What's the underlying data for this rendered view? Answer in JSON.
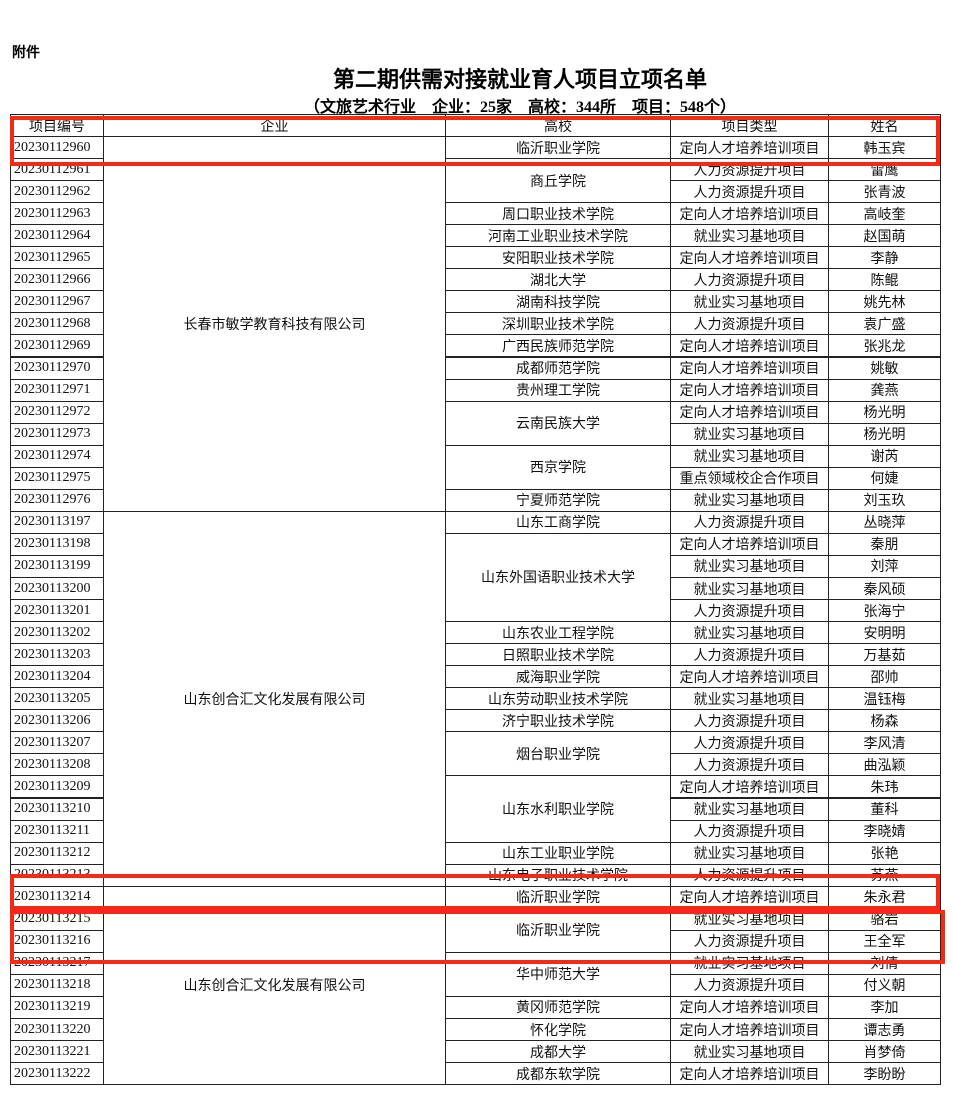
{
  "header": {
    "label": "附件",
    "title": "第二期供需对接就业育人项目立项名单",
    "subtitle": "（文旅艺术行业　企业：25家　高校：344所　项目：548个）"
  },
  "table": {
    "columns": [
      "项目编号",
      "企业",
      "高校",
      "项目类型",
      "姓名"
    ],
    "companies": [
      {
        "name": "长春市敏学教育科技有限公司",
        "schools": [
          {
            "name": "临沂职业学院",
            "projects": [
              {
                "id": "20230112960",
                "type": "定向人才培养培训项目",
                "person": "韩玉宾"
              }
            ]
          },
          {
            "name": "商丘学院",
            "projects": [
              {
                "id": "20230112961",
                "type": "人力资源提升项目",
                "person": "雷鹰"
              },
              {
                "id": "20230112962",
                "type": "人力资源提升项目",
                "person": "张青波"
              }
            ]
          },
          {
            "name": "周口职业技术学院",
            "projects": [
              {
                "id": "20230112963",
                "type": "定向人才培养培训项目",
                "person": "高岐奎"
              }
            ]
          },
          {
            "name": "河南工业职业技术学院",
            "projects": [
              {
                "id": "20230112964",
                "type": "就业实习基地项目",
                "person": "赵国萌"
              }
            ]
          },
          {
            "name": "安阳职业技术学院",
            "projects": [
              {
                "id": "20230112965",
                "type": "定向人才培养培训项目",
                "person": "李静"
              }
            ]
          },
          {
            "name": "湖北大学",
            "projects": [
              {
                "id": "20230112966",
                "type": "人力资源提升项目",
                "person": "陈鲲"
              }
            ]
          },
          {
            "name": "湖南科技学院",
            "projects": [
              {
                "id": "20230112967",
                "type": "就业实习基地项目",
                "person": "姚先林"
              }
            ]
          },
          {
            "name": "深圳职业技术学院",
            "projects": [
              {
                "id": "20230112968",
                "type": "人力资源提升项目",
                "person": "袁广盛"
              }
            ]
          },
          {
            "name": "广西民族师范学院",
            "projects": [
              {
                "id": "20230112969",
                "type": "定向人才培养培训项目",
                "person": "张兆龙"
              }
            ]
          },
          {
            "name": "成都师范学院",
            "projects": [
              {
                "id": "20230112970",
                "type": "定向人才培养培训项目",
                "person": "姚敏"
              }
            ]
          },
          {
            "name": "贵州理工学院",
            "projects": [
              {
                "id": "20230112971",
                "type": "定向人才培养培训项目",
                "person": "龚燕"
              }
            ]
          },
          {
            "name": "云南民族大学",
            "projects": [
              {
                "id": "20230112972",
                "type": "定向人才培养培训项目",
                "person": "杨光明"
              },
              {
                "id": "20230112973",
                "type": "就业实习基地项目",
                "person": "杨光明"
              }
            ]
          },
          {
            "name": "西京学院",
            "projects": [
              {
                "id": "20230112974",
                "type": "就业实习基地项目",
                "person": "谢芮"
              },
              {
                "id": "20230112975",
                "type": "重点领域校企合作项目",
                "person": "何婕"
              }
            ]
          },
          {
            "name": "宁夏师范学院",
            "projects": [
              {
                "id": "20230112976",
                "type": "就业实习基地项目",
                "person": "刘玉玖"
              }
            ]
          }
        ]
      },
      {
        "name": "山东创合汇文化发展有限公司",
        "schools": [
          {
            "name": "山东工商学院",
            "projects": [
              {
                "id": "20230113197",
                "type": "人力资源提升项目",
                "person": "丛晓萍"
              }
            ]
          },
          {
            "name": "山东外国语职业技术大学",
            "projects": [
              {
                "id": "20230113198",
                "type": "定向人才培养培训项目",
                "person": "秦朋"
              },
              {
                "id": "20230113199",
                "type": "就业实习基地项目",
                "person": "刘萍"
              },
              {
                "id": "20230113200",
                "type": "就业实习基地项目",
                "person": "秦风硕"
              },
              {
                "id": "20230113201",
                "type": "人力资源提升项目",
                "person": "张海宁"
              }
            ]
          },
          {
            "name": "山东农业工程学院",
            "projects": [
              {
                "id": "20230113202",
                "type": "就业实习基地项目",
                "person": "安明明"
              }
            ]
          },
          {
            "name": "日照职业技术学院",
            "projects": [
              {
                "id": "20230113203",
                "type": "人力资源提升项目",
                "person": "万基茹"
              }
            ]
          },
          {
            "name": "威海职业学院",
            "projects": [
              {
                "id": "20230113204",
                "type": "定向人才培养培训项目",
                "person": "邵帅"
              }
            ]
          },
          {
            "name": "山东劳动职业技术学院",
            "projects": [
              {
                "id": "20230113205",
                "type": "就业实习基地项目",
                "person": "温钰梅"
              }
            ]
          },
          {
            "name": "济宁职业技术学院",
            "projects": [
              {
                "id": "20230113206",
                "type": "人力资源提升项目",
                "person": "杨森"
              }
            ]
          },
          {
            "name": "烟台职业学院",
            "projects": [
              {
                "id": "20230113207",
                "type": "人力资源提升项目",
                "person": "李风清"
              },
              {
                "id": "20230113208",
                "type": "人力资源提升项目",
                "person": "曲泓颖"
              }
            ]
          },
          {
            "name": "山东水利职业学院",
            "projects": [
              {
                "id": "20230113209",
                "type": "定向人才培养培训项目",
                "person": "朱玮"
              },
              {
                "id": "20230113210",
                "type": "就业实习基地项目",
                "person": "董科"
              },
              {
                "id": "20230113211",
                "type": "人力资源提升项目",
                "person": "李晓婧"
              }
            ]
          },
          {
            "name": "山东工业职业学院",
            "projects": [
              {
                "id": "20230113212",
                "type": "就业实习基地项目",
                "person": "张艳"
              }
            ]
          },
          {
            "name": "山东电子职业技术学院",
            "projects": [
              {
                "id": "20230113213",
                "type": "人力资源提升项目",
                "person": "苏燕"
              }
            ]
          }
        ]
      },
      {
        "name": "山东创合汇文化发展有限公司",
        "schools": [
          {
            "name": "临沂职业学院",
            "projects": [
              {
                "id": "20230113214",
                "type": "定向人才培养培训项目",
                "person": "朱永君"
              }
            ]
          },
          {
            "name": "临沂职业学院",
            "projects": [
              {
                "id": "20230113215",
                "type": "就业实习基地项目",
                "person": "骆岩"
              },
              {
                "id": "20230113216",
                "type": "人力资源提升项目",
                "person": "王全军"
              }
            ]
          },
          {
            "name": "华中师范大学",
            "projects": [
              {
                "id": "20230113217",
                "type": "就业实习基地项目",
                "person": "刘倩"
              },
              {
                "id": "20230113218",
                "type": "人力资源提升项目",
                "person": "付义朝"
              }
            ]
          },
          {
            "name": "黄冈师范学院",
            "projects": [
              {
                "id": "20230113219",
                "type": "定向人才培养培训项目",
                "person": "李加"
              }
            ]
          },
          {
            "name": "怀化学院",
            "projects": [
              {
                "id": "20230113220",
                "type": "定向人才培养培训项目",
                "person": "谭志勇"
              }
            ]
          },
          {
            "name": "成都大学",
            "projects": [
              {
                "id": "20230113221",
                "type": "就业实习基地项目",
                "person": "肖梦倚"
              }
            ]
          },
          {
            "name": "成都东软学院",
            "projects": [
              {
                "id": "20230113222",
                "type": "定向人才培养培训项目",
                "person": "李盼盼"
              }
            ]
          }
        ]
      }
    ]
  }
}
